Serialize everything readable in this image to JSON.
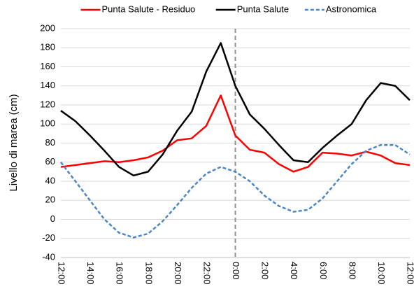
{
  "chart_data": {
    "type": "line",
    "y_label": "Livello di marea (cm)",
    "categories": [
      "12:00",
      null,
      "14:00",
      null,
      "16:00",
      null,
      "18:00",
      null,
      "20:00",
      null,
      "22:00",
      null,
      "0:00",
      null,
      "2:00",
      null,
      "4:00",
      null,
      "6:00",
      null,
      "8:00",
      null,
      "10:00",
      null,
      "12:00"
    ],
    "series": [
      {
        "name": "Punta Salute - Residuo",
        "color": "#ff0000",
        "dashed": false,
        "values": [
          55,
          57,
          59,
          61,
          60,
          62,
          65,
          72,
          83,
          85,
          98,
          130,
          88,
          73,
          70,
          58,
          50,
          55,
          70,
          69,
          67,
          71,
          67,
          59,
          57
        ]
      },
      {
        "name": "Punta Salute",
        "color": "#000000",
        "dashed": false,
        "values": [
          114,
          103,
          88,
          72,
          55,
          46,
          50,
          68,
          93,
          113,
          155,
          185,
          140,
          110,
          95,
          78,
          62,
          60,
          75,
          88,
          100,
          125,
          143,
          140,
          125
        ]
      },
      {
        "name": "Astronomica",
        "color": "#4a86c8",
        "dashed": true,
        "values": [
          60,
          40,
          20,
          0,
          -14,
          -19,
          -15,
          -2,
          15,
          33,
          48,
          55,
          50,
          40,
          25,
          14,
          8,
          10,
          22,
          40,
          58,
          72,
          78,
          78,
          68
        ]
      }
    ],
    "ylim": [
      -40,
      200
    ],
    "yticks": [
      -40,
      -20,
      0,
      20,
      40,
      60,
      80,
      100,
      120,
      140,
      160,
      180,
      200
    ],
    "grid": true,
    "legend": "top"
  }
}
